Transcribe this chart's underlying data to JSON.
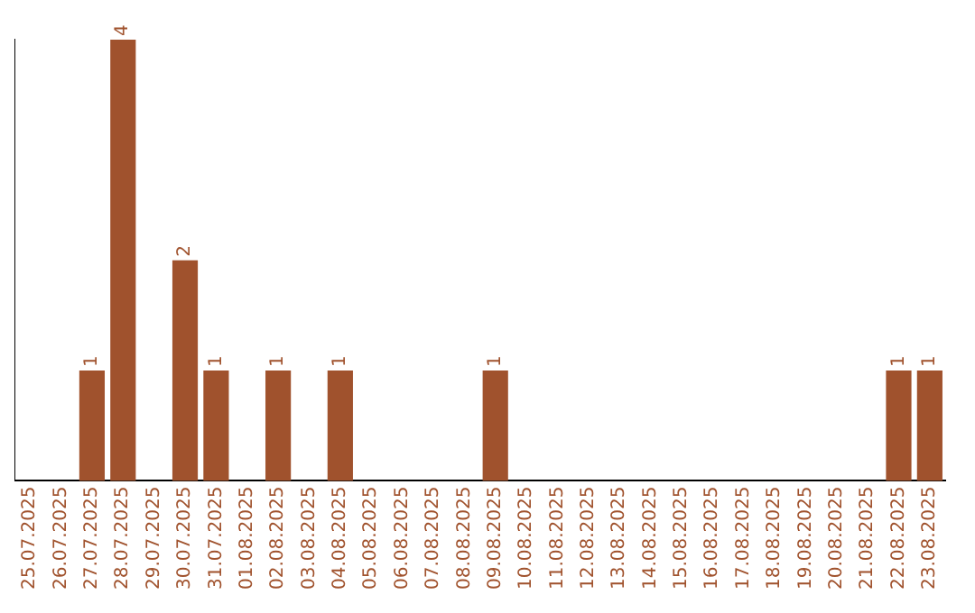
{
  "chart_data": {
    "type": "bar",
    "categories": [
      "25.07.2025",
      "26.07.2025",
      "27.07.2025",
      "28.07.2025",
      "29.07.2025",
      "30.07.2025",
      "31.07.2025",
      "01.08.2025",
      "02.08.2025",
      "03.08.2025",
      "04.08.2025",
      "05.08.2025",
      "06.08.2025",
      "07.08.2025",
      "08.08.2025",
      "09.08.2025",
      "10.08.2025",
      "11.08.2025",
      "12.08.2025",
      "13.08.2025",
      "14.08.2025",
      "15.08.2025",
      "16.08.2025",
      "17.08.2025",
      "18.08.2025",
      "19.08.2025",
      "20.08.2025",
      "21.08.2025",
      "22.08.2025",
      "23.08.2025"
    ],
    "values": [
      0,
      0,
      1,
      4,
      0,
      2,
      1,
      0,
      1,
      0,
      1,
      0,
      0,
      0,
      0,
      1,
      0,
      0,
      0,
      0,
      0,
      0,
      0,
      0,
      0,
      0,
      0,
      0,
      1,
      1
    ],
    "value_labels": [
      null,
      null,
      "1",
      "4",
      null,
      "2",
      "1",
      null,
      "1",
      null,
      "1",
      null,
      null,
      null,
      null,
      "1",
      null,
      null,
      null,
      null,
      null,
      null,
      null,
      null,
      null,
      null,
      null,
      null,
      "1",
      "1"
    ],
    "color": "#a0522d",
    "grid": false,
    "tick_labels": "x"
  }
}
